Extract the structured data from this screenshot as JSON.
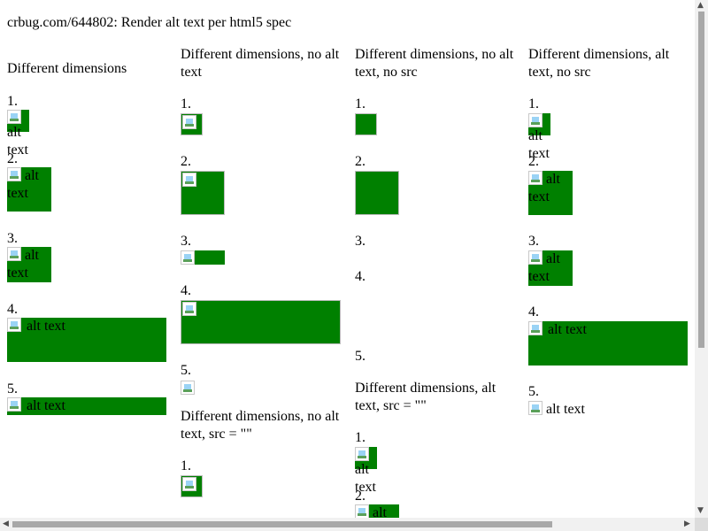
{
  "title": "crbug.com/644802: Render alt text per html5 spec",
  "alt": "alt text",
  "columns": [
    {
      "heading": [
        "Different dimensions"
      ],
      "items": [
        "1.",
        "2.",
        "3.",
        "4.",
        "5."
      ]
    },
    {
      "heading": [
        "Different dimensions, no alt",
        "text"
      ],
      "items": [
        "1.",
        "2.",
        "3.",
        "4.",
        "5."
      ]
    },
    {
      "heading": [
        "Different dimensions, no alt",
        "text, no src"
      ],
      "items": [
        "1.",
        "2.",
        "3.",
        "4.",
        "5."
      ]
    },
    {
      "heading": [
        "Different dimensions, alt",
        "text, no src"
      ],
      "items": [
        "1.",
        "2.",
        "3.",
        "4.",
        "5."
      ]
    }
  ],
  "section_b": {
    "heading": [
      "Different dimensions, no alt",
      "text, src = \"\""
    ],
    "items": [
      "1."
    ]
  },
  "section_d": {
    "heading": [
      "Different dimensions, alt",
      "text, src = \"\""
    ],
    "items": [
      "1.",
      "2."
    ]
  },
  "colors": {
    "image_fill": "#008000",
    "scrollbar_thumb": "#a8a8a8",
    "scrollbar_track": "#f1f1f1"
  },
  "icons": [
    "broken-image-icon",
    "scroll-arrow-up-icon",
    "scroll-arrow-down-icon",
    "scroll-arrow-left-icon",
    "scroll-arrow-right-icon"
  ]
}
